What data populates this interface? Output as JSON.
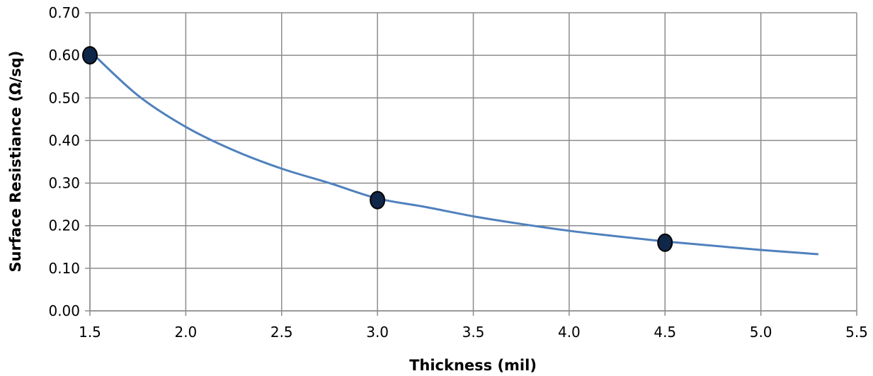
{
  "chart_data": {
    "type": "scatter",
    "title": "",
    "xlabel": "Thickness (mil)",
    "ylabel": "Surface Resistiance  (Ω/sq)",
    "xlim": [
      1.5,
      5.5
    ],
    "ylim": [
      0.0,
      0.7
    ],
    "x_ticks": [
      "1.5",
      "2.0",
      "2.5",
      "3.0",
      "3.5",
      "4.0",
      "4.5",
      "5.0",
      "5.5"
    ],
    "y_ticks": [
      "0.00",
      "0.10",
      "0.20",
      "0.30",
      "0.40",
      "0.50",
      "0.60",
      "0.70"
    ],
    "grid": true,
    "legend": "none",
    "points": [
      {
        "x": 1.5,
        "y": 0.6
      },
      {
        "x": 3.0,
        "y": 0.26
      },
      {
        "x": 4.5,
        "y": 0.16
      }
    ],
    "trendline": {
      "type": "power",
      "x": [
        1.5,
        1.75,
        2.0,
        2.25,
        2.5,
        2.75,
        3.0,
        3.25,
        3.5,
        3.75,
        4.0,
        4.25,
        4.5,
        4.75,
        5.0,
        5.3
      ],
      "y": [
        0.61,
        0.506,
        0.432,
        0.377,
        0.334,
        0.3,
        0.264,
        0.244,
        0.222,
        0.204,
        0.188,
        0.175,
        0.163,
        0.153,
        0.143,
        0.133
      ]
    },
    "colors": {
      "line": "#4F81BD",
      "marker_fill": "#0F2748",
      "marker_stroke": "#000000",
      "grid": "#8C8C8C",
      "axis": "#8C8C8C"
    }
  }
}
